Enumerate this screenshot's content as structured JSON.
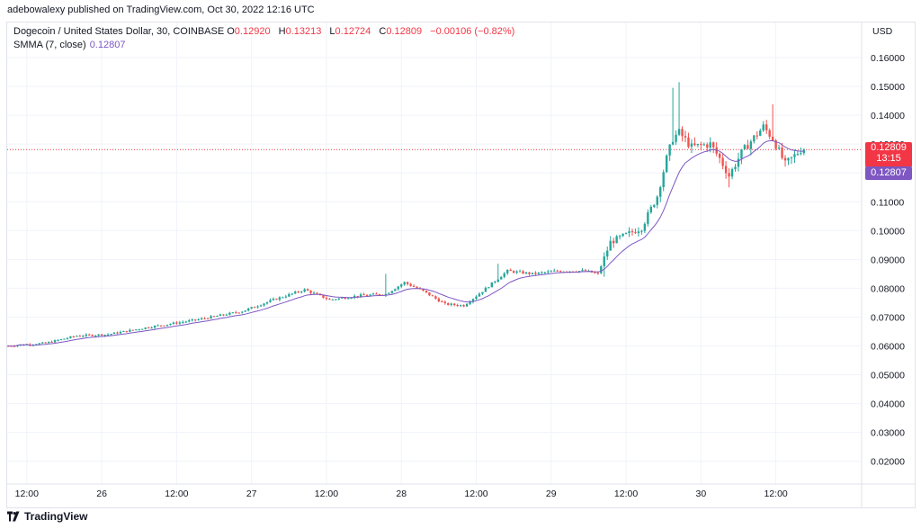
{
  "header": {
    "published": "adebowalexy published on TradingView.com, Oct 30, 2022 12:16 UTC"
  },
  "legend": {
    "symbol": "Dogecoin / United States Dollar, 30, COINBASE",
    "o_label": "O",
    "o_value": "0.12920",
    "h_label": "H",
    "h_value": "0.13213",
    "l_label": "L",
    "l_value": "0.12724",
    "c_label": "C",
    "c_value": "0.12809",
    "change": "−0.00106 (−0.82%)",
    "smma_label": "SMMA (7, close)",
    "smma_value": "0.12807"
  },
  "price_badge": {
    "price": "0.12809",
    "countdown": "13:15"
  },
  "smma_badge": {
    "value": "0.12807"
  },
  "footer": {
    "brand": "TradingView",
    "logo_icon": "tradingview-logo-icon"
  },
  "colors": {
    "up": "#26a69a",
    "down": "#ef5350",
    "smma": "#7e57c2",
    "price_line": "#f23645",
    "grid": "#f0f3fa"
  },
  "chart_data": {
    "type": "candlestick",
    "currency_label": "USD",
    "y_ticks": [
      "0.02000",
      "0.03000",
      "0.04000",
      "0.05000",
      "0.06000",
      "0.07000",
      "0.08000",
      "0.09000",
      "0.10000",
      "0.11000",
      "0.12000",
      "0.13000",
      "0.14000",
      "0.15000",
      "0.16000"
    ],
    "ylim": [
      0.012,
      0.168
    ],
    "x_ticks": [
      {
        "label": "12:00",
        "bar": 6
      },
      {
        "label": "26",
        "bar": 30
      },
      {
        "label": "12:00",
        "bar": 54
      },
      {
        "label": "27",
        "bar": 78
      },
      {
        "label": "12:00",
        "bar": 102
      },
      {
        "label": "28",
        "bar": 126
      },
      {
        "label": "12:00",
        "bar": 150
      },
      {
        "label": "29",
        "bar": 174
      },
      {
        "label": "12:00",
        "bar": 198
      },
      {
        "label": "30",
        "bar": 222
      },
      {
        "label": "12:00",
        "bar": 246
      }
    ],
    "last_price": 0.12809,
    "keypoints": [
      [
        0,
        0.06
      ],
      [
        12,
        0.061
      ],
      [
        22,
        0.0635
      ],
      [
        32,
        0.064
      ],
      [
        45,
        0.0665
      ],
      [
        60,
        0.069
      ],
      [
        75,
        0.072
      ],
      [
        85,
        0.076
      ],
      [
        95,
        0.0795
      ],
      [
        103,
        0.076
      ],
      [
        113,
        0.0775
      ],
      [
        121,
        0.078
      ],
      [
        127,
        0.082
      ],
      [
        133,
        0.079
      ],
      [
        140,
        0.0745
      ],
      [
        146,
        0.074
      ],
      [
        152,
        0.079
      ],
      [
        160,
        0.086
      ],
      [
        168,
        0.085
      ],
      [
        176,
        0.086
      ],
      [
        185,
        0.086
      ],
      [
        189,
        0.085
      ],
      [
        193,
        0.096
      ],
      [
        203,
        0.101
      ],
      [
        208,
        0.112
      ],
      [
        211,
        0.125
      ],
      [
        213,
        0.132
      ],
      [
        215,
        0.134
      ],
      [
        219,
        0.129
      ],
      [
        225,
        0.13
      ],
      [
        228,
        0.125
      ],
      [
        231,
        0.119
      ],
      [
        235,
        0.127
      ],
      [
        238,
        0.131
      ],
      [
        242,
        0.136
      ],
      [
        245,
        0.132
      ],
      [
        249,
        0.123
      ],
      [
        252,
        0.126
      ],
      [
        255,
        0.129
      ]
    ],
    "spikes": [
      {
        "bar": 213,
        "high": 0.1495
      },
      {
        "bar": 215,
        "high": 0.1515
      },
      {
        "bar": 245,
        "high": 0.1438
      },
      {
        "bar": 157,
        "high": 0.0885
      },
      {
        "bar": 121,
        "high": 0.085
      },
      {
        "bar": 191,
        "low": 0.084
      },
      {
        "bar": 231,
        "low": 0.115
      }
    ],
    "smma_period": 7
  }
}
